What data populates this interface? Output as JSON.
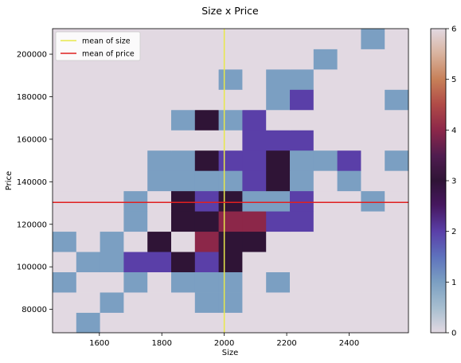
{
  "chart_data": {
    "type": "heatmap",
    "title": "Size x Price",
    "xlabel": "Size",
    "ylabel": "Price",
    "xlim": [
      1450,
      2590
    ],
    "ylim": [
      69000,
      212000
    ],
    "x_edges": [
      1450,
      1526,
      1602,
      1678,
      1754,
      1830,
      1906,
      1982,
      2058,
      2134,
      2210,
      2286,
      2362,
      2438,
      2514,
      2590
    ],
    "y_edges": [
      69000,
      78533,
      88067,
      97600,
      107133,
      116667,
      126200,
      135733,
      145267,
      154800,
      164333,
      173867,
      183400,
      192933,
      202467,
      212000
    ],
    "counts": [
      [
        0,
        1,
        0,
        0,
        0,
        0,
        0,
        0,
        0,
        0,
        0,
        0,
        0,
        0,
        0
      ],
      [
        0,
        0,
        1,
        0,
        0,
        0,
        1,
        1,
        0,
        0,
        0,
        0,
        0,
        0,
        0
      ],
      [
        1,
        0,
        0,
        1,
        0,
        1,
        1,
        1,
        0,
        1,
        0,
        0,
        0,
        0,
        0
      ],
      [
        0,
        1,
        1,
        2,
        2,
        3,
        2,
        3,
        0,
        0,
        0,
        0,
        0,
        0,
        0
      ],
      [
        1,
        0,
        1,
        0,
        3,
        0,
        4,
        3,
        3,
        0,
        0,
        0,
        0,
        0,
        0
      ],
      [
        0,
        0,
        0,
        1,
        0,
        3,
        3,
        4,
        4,
        2,
        2,
        0,
        0,
        0,
        0
      ],
      [
        0,
        0,
        0,
        1,
        0,
        3,
        2,
        3,
        1,
        1,
        2,
        0,
        0,
        1,
        0
      ],
      [
        0,
        0,
        0,
        0,
        1,
        1,
        1,
        1,
        2,
        3,
        1,
        0,
        1,
        0,
        0
      ],
      [
        0,
        0,
        0,
        0,
        1,
        1,
        3,
        2,
        2,
        3,
        1,
        1,
        2,
        0,
        1
      ],
      [
        0,
        0,
        0,
        0,
        0,
        0,
        0,
        0,
        2,
        2,
        2,
        0,
        0,
        0,
        0
      ],
      [
        0,
        0,
        0,
        0,
        0,
        1,
        3,
        1,
        2,
        0,
        0,
        0,
        0,
        0,
        0
      ],
      [
        0,
        0,
        0,
        0,
        0,
        0,
        0,
        0,
        0,
        1,
        2,
        0,
        0,
        0,
        1
      ],
      [
        0,
        0,
        0,
        0,
        0,
        0,
        0,
        1,
        0,
        1,
        1,
        0,
        0,
        0,
        0
      ],
      [
        0,
        0,
        0,
        0,
        0,
        0,
        0,
        0,
        0,
        0,
        0,
        1,
        0,
        0,
        0
      ],
      [
        0,
        0,
        0,
        0,
        0,
        0,
        0,
        0,
        0,
        0,
        0,
        0,
        0,
        1,
        0
      ]
    ],
    "x_ticks": [
      1600,
      1800,
      2000,
      2200,
      2400
    ],
    "x_tick_labels": [
      "1600",
      "1800",
      "2000",
      "2200",
      "2400"
    ],
    "y_ticks": [
      80000,
      100000,
      120000,
      140000,
      160000,
      180000,
      200000
    ],
    "y_tick_labels": [
      "80000",
      "100000",
      "120000",
      "140000",
      "160000",
      "180000",
      "200000"
    ],
    "colorbar": {
      "min": 0,
      "max": 6,
      "ticks": [
        0,
        1,
        2,
        3,
        4,
        5,
        6
      ],
      "tick_labels": [
        "0",
        "1",
        "2",
        "3",
        "4",
        "5",
        "6"
      ],
      "colormap": "twilight"
    },
    "mean_lines": [
      {
        "name": "mean of size",
        "orientation": "vertical",
        "value": 2000,
        "color": "#e8e84a"
      },
      {
        "name": "mean of price",
        "orientation": "horizontal",
        "value": 130300,
        "color": "#e02020"
      }
    ],
    "legend_position": "upper-left",
    "grid": false
  }
}
